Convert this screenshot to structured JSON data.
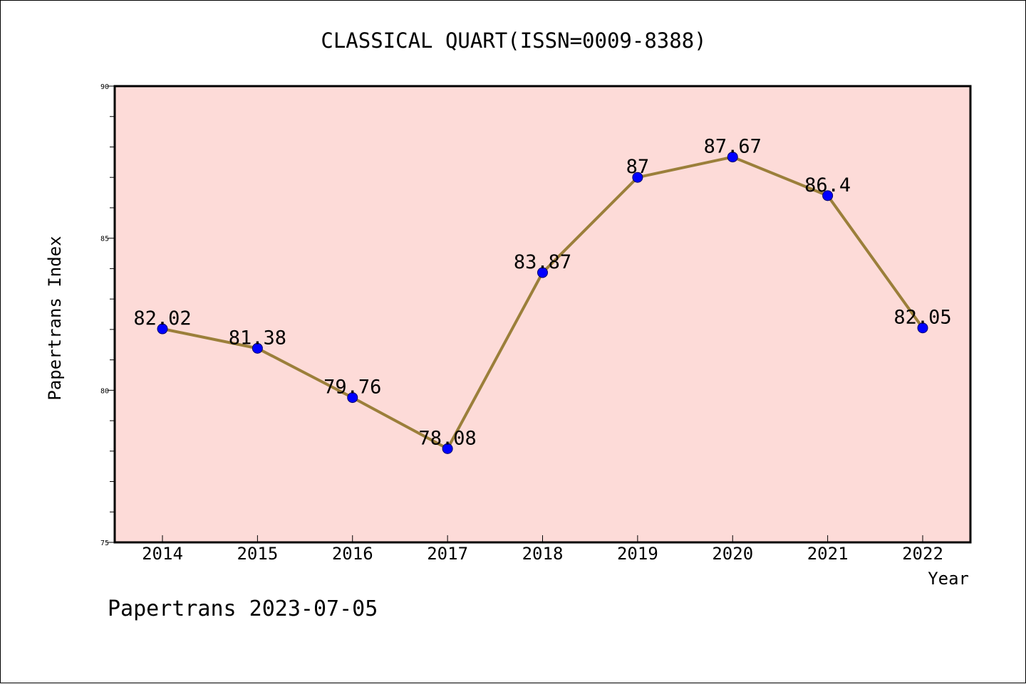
{
  "chart_data": {
    "type": "line",
    "title": "CLASSICAL QUART(ISSN=0009-8388)",
    "xlabel": "Year",
    "ylabel": "Papertrans Index",
    "categories": [
      "2014",
      "2015",
      "2016",
      "2017",
      "2018",
      "2019",
      "2020",
      "2021",
      "2022"
    ],
    "series": [
      {
        "values": [
          82.02,
          81.38,
          79.76,
          78.08,
          83.87,
          87,
          87.67,
          86.4,
          82.05
        ],
        "labels": [
          "82.02",
          "81.38",
          "79.76",
          "78.08",
          "83.87",
          "87",
          "87.67",
          "86.4",
          "82.05"
        ]
      }
    ],
    "ylim": [
      75,
      90
    ],
    "yticks": [
      "75",
      "80",
      "85",
      "90"
    ],
    "grid": false,
    "line_color": "#9b7f3a",
    "marker_color": "#0000ff",
    "plot_background": "#fddbd8"
  },
  "footer": "Papertrans 2023-07-05"
}
